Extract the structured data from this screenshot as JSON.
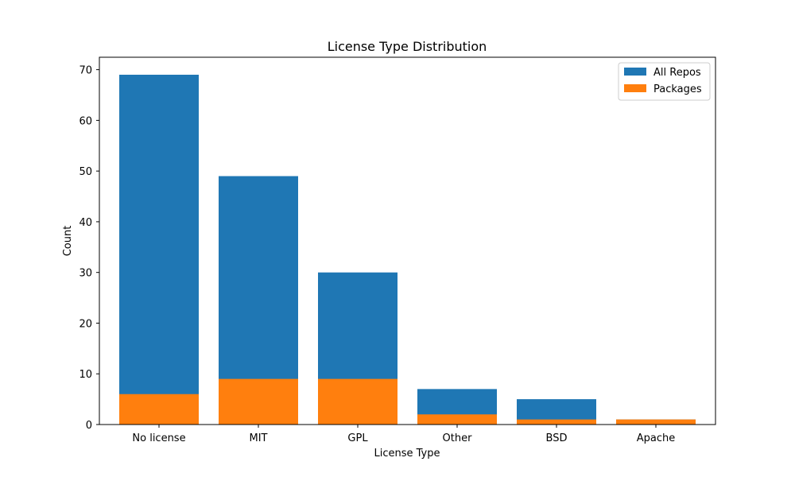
{
  "chart_data": {
    "type": "bar",
    "title": "License Type Distribution",
    "xlabel": "License Type",
    "ylabel": "Count",
    "categories": [
      "No license",
      "MIT",
      "GPL",
      "Other",
      "BSD",
      "Apache"
    ],
    "series": [
      {
        "name": "All Repos",
        "color": "#1f77b4",
        "values": [
          69,
          49,
          30,
          7,
          5,
          1
        ]
      },
      {
        "name": "Packages",
        "color": "#ff7f0e",
        "values": [
          6,
          9,
          9,
          2,
          1,
          1
        ]
      }
    ],
    "ylim": [
      0,
      72.45
    ],
    "yticks": [
      0,
      10,
      20,
      30,
      40,
      50,
      60,
      70
    ],
    "grid": false,
    "legend_position": "top-right",
    "bars_overlaid": true
  }
}
